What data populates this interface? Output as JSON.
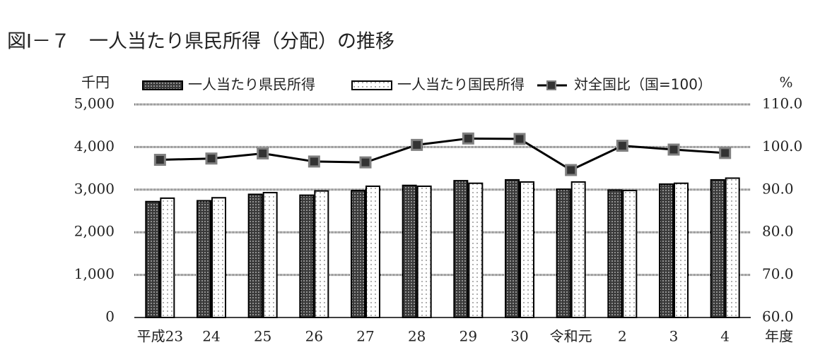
{
  "chart_data": {
    "type": "bar-line",
    "title": "図Ⅰ－７　一人当たり県民所得（分配）の推移",
    "y_label": "千円",
    "y2_label": "%",
    "x_label": "年度",
    "categories": [
      "平成23",
      "24",
      "25",
      "26",
      "27",
      "28",
      "29",
      "30",
      "令和元",
      "2",
      "3",
      "4"
    ],
    "series": [
      {
        "name": "一人当たり県民所得",
        "type": "bar",
        "color": "#3a3a3a",
        "values": [
          2720,
          2740,
          2890,
          2870,
          2980,
          3100,
          3210,
          3230,
          3010,
          2990,
          3130,
          3230
        ]
      },
      {
        "name": "一人当たり国民所得",
        "type": "bar",
        "color": "#ffffff",
        "values": [
          2800,
          2810,
          2930,
          2970,
          3080,
          3080,
          3150,
          3180,
          3180,
          2980,
          3150,
          3270
        ]
      },
      {
        "name": "対全国比（国=100）",
        "type": "line",
        "axis": "y2",
        "color": "#000000",
        "marker_color": "#808080",
        "values": [
          97.0,
          97.3,
          98.5,
          96.6,
          96.4,
          100.5,
          102.0,
          101.9,
          94.6,
          100.3,
          99.4,
          98.6
        ]
      }
    ],
    "ylim": [
      0,
      5000
    ],
    "yticks": [
      0,
      {
        "value": 1000,
        "label": "1,000"
      },
      {
        "value": 2000,
        "label": "2,000"
      },
      {
        "value": 3000,
        "label": "3,000"
      },
      {
        "value": 4000,
        "label": "4,000"
      },
      {
        "value": 5000,
        "label": "5,000"
      }
    ],
    "y2lim": [
      60,
      110
    ],
    "y2ticks": [
      {
        "value": 60,
        "label": "60.0"
      },
      {
        "value": 70,
        "label": "70.0"
      },
      {
        "value": 80,
        "label": "80.0"
      },
      {
        "value": 90,
        "label": "90.0"
      },
      {
        "value": 100,
        "label": "100.0"
      },
      {
        "value": 110,
        "label": "110.0"
      }
    ],
    "grid": true,
    "legend": "top"
  }
}
